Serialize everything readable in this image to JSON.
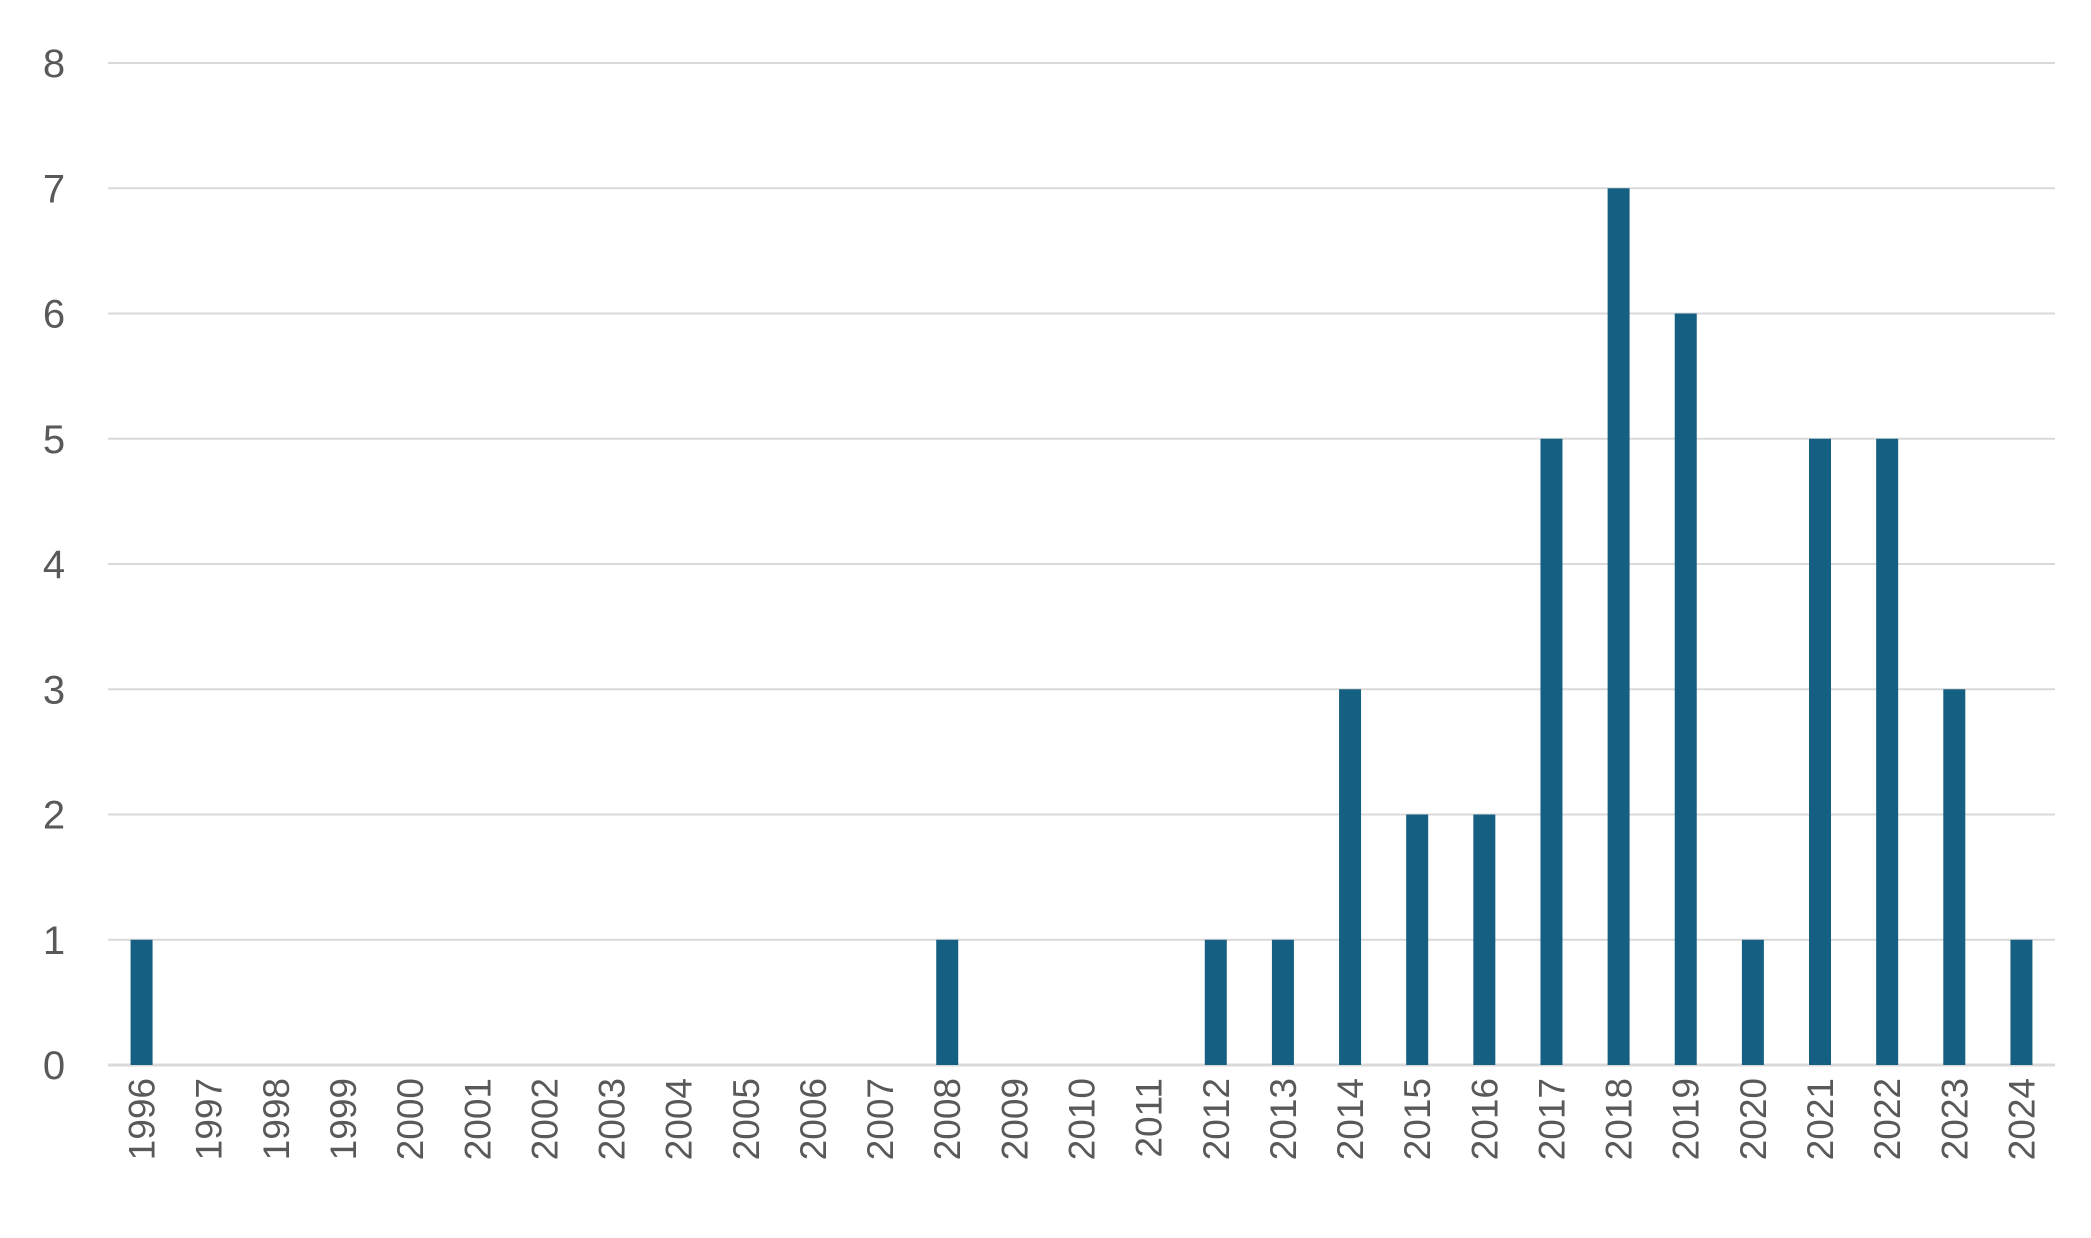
{
  "chart_data": {
    "type": "bar",
    "title": "",
    "xlabel": "",
    "ylabel": "",
    "categories": [
      "1996",
      "1997",
      "1998",
      "1999",
      "2000",
      "2001",
      "2002",
      "2003",
      "2004",
      "2005",
      "2006",
      "2007",
      "2008",
      "2009",
      "2010",
      "2011",
      "2012",
      "2013",
      "2014",
      "2015",
      "2016",
      "2017",
      "2018",
      "2019",
      "2020",
      "2021",
      "2022",
      "2023",
      "2024"
    ],
    "series": [
      {
        "values": [
          1,
          0,
          0,
          0,
          0,
          0,
          0,
          0,
          0,
          0,
          0,
          0,
          1,
          0,
          0,
          0,
          1,
          1,
          3,
          2,
          2,
          5,
          7,
          6,
          1,
          5,
          5,
          3,
          1
        ],
        "color": "#155F82"
      }
    ],
    "ylim": [
      0,
      8
    ],
    "yticks": [
      0,
      1,
      2,
      3,
      4,
      5,
      6,
      7,
      8
    ],
    "grid": true,
    "legend": "none",
    "gridline_color": "#d9d9d9",
    "text_color": "#595959"
  }
}
